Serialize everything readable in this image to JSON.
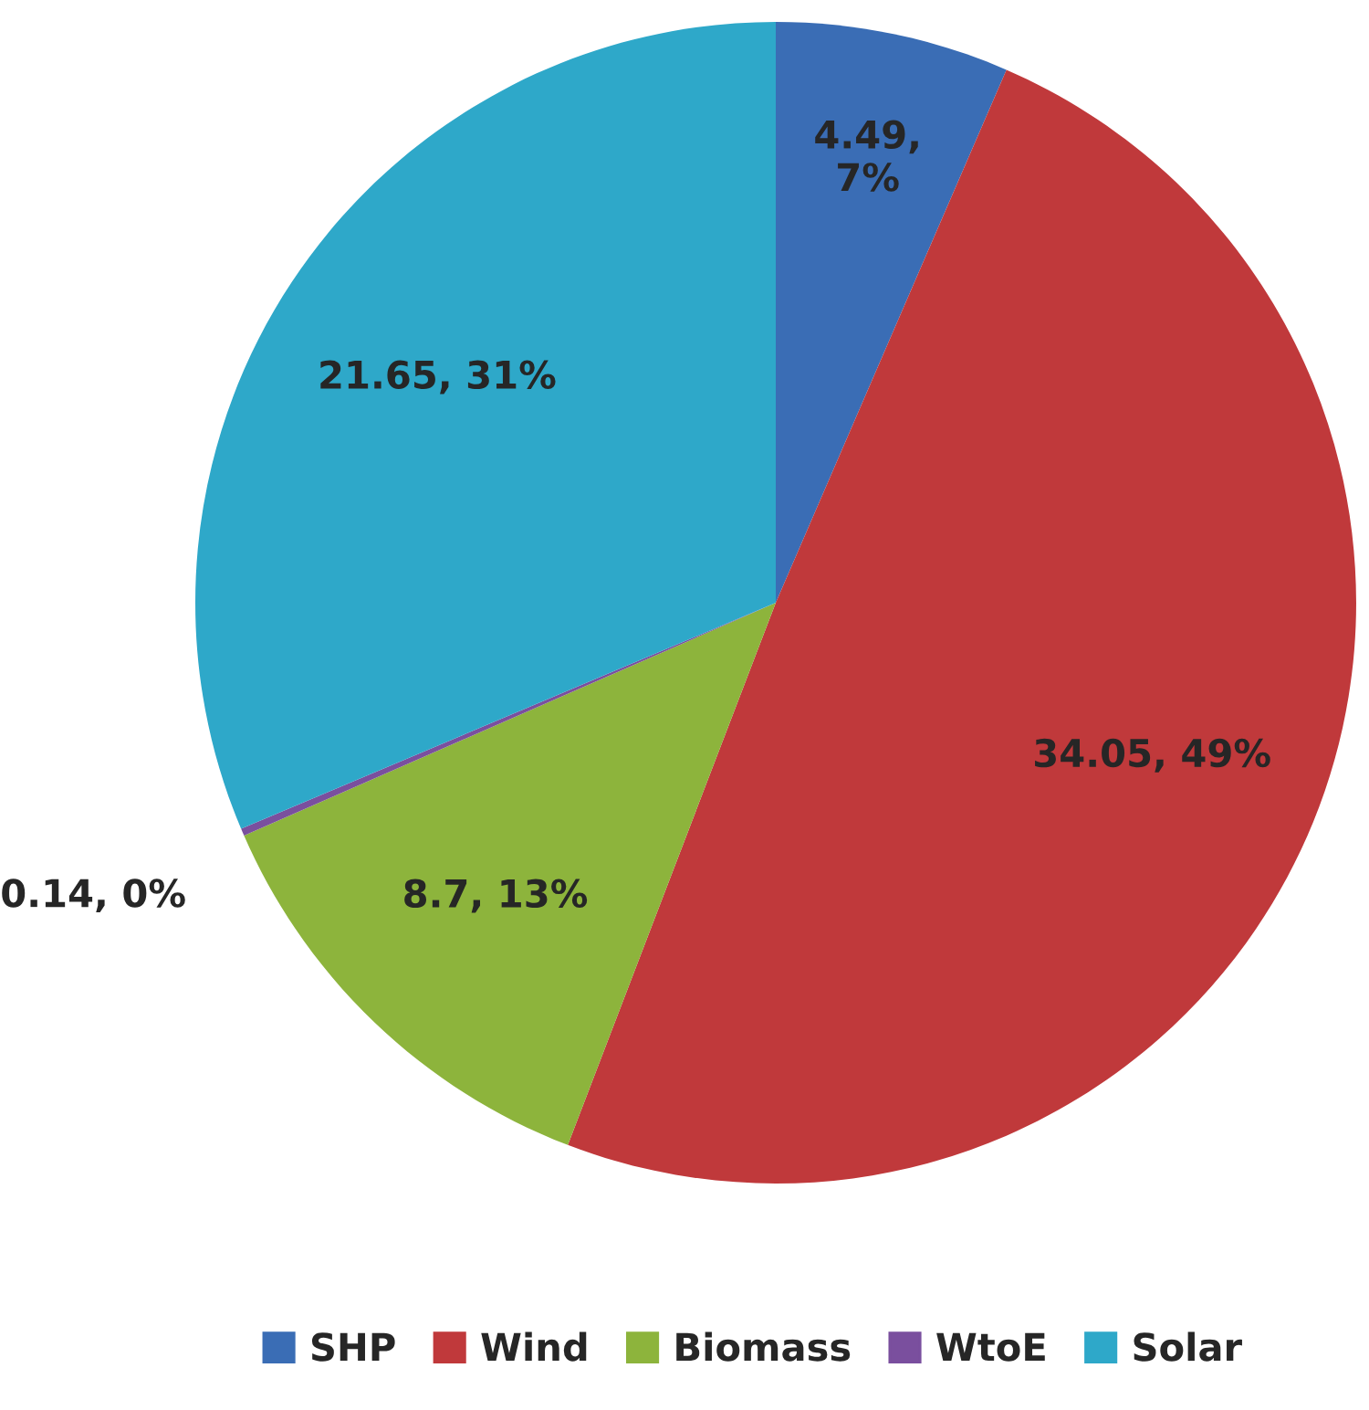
{
  "chart_data": {
    "type": "pie",
    "categories": [
      "SHP",
      "Wind",
      "Biomass",
      "WtoE",
      "Solar"
    ],
    "values": [
      4.49,
      34.05,
      8.7,
      0.14,
      21.65
    ],
    "colors": [
      "#3a6db5",
      "#c0393b",
      "#8db43c",
      "#7a4f9e",
      "#2ea8c9"
    ],
    "value_labels": [
      "4.49,\n7%",
      "34.05, 49%",
      "8.7, 13%",
      "0.14, 0%",
      "21.65, 31%"
    ],
    "legend": "bottom"
  }
}
